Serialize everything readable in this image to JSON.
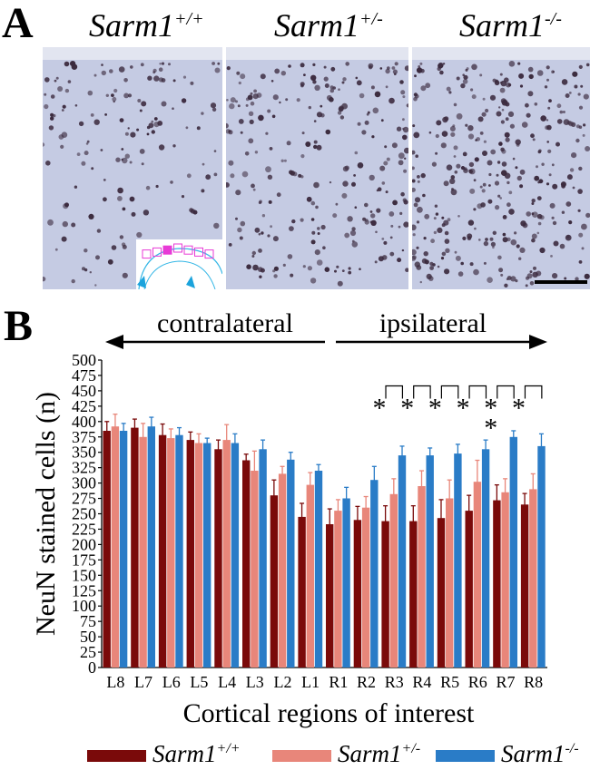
{
  "panel_a": {
    "letter": "A",
    "genotype_labels": [
      {
        "base": "Sarm1",
        "sup": "+/+"
      },
      {
        "base": "Sarm1",
        "sup": "+/-"
      },
      {
        "base": "Sarm1",
        "sup": "-/-"
      }
    ]
  },
  "panel_b": {
    "letter": "B"
  },
  "colors": {
    "wt": "#7a0a0a",
    "het": "#e8867a",
    "ko": "#2a7cc7",
    "tissue": "#c5cbe3",
    "cells": "#3b2a3e"
  },
  "chart_data": {
    "type": "bar",
    "categories": [
      "L8",
      "L7",
      "L6",
      "L5",
      "L4",
      "L3",
      "L2",
      "L1",
      "R1",
      "R2",
      "R3",
      "R4",
      "R5",
      "R6",
      "R7",
      "R8"
    ],
    "series": [
      {
        "name": "Sarm1+/+",
        "values": [
          385,
          390,
          378,
          370,
          355,
          337,
          280,
          245,
          233,
          240,
          238,
          238,
          243,
          255,
          272,
          265
        ],
        "errors": [
          15,
          14,
          18,
          13,
          15,
          10,
          25,
          22,
          25,
          22,
          25,
          25,
          30,
          25,
          25,
          18
        ]
      },
      {
        "name": "Sarm1+/-",
        "values": [
          392,
          375,
          373,
          365,
          370,
          320,
          315,
          297,
          255,
          260,
          282,
          295,
          275,
          302,
          285,
          290
        ],
        "errors": [
          20,
          22,
          15,
          15,
          25,
          32,
          12,
          20,
          18,
          18,
          25,
          25,
          30,
          35,
          22,
          25
        ]
      },
      {
        "name": "Sarm1-/-",
        "values": [
          385,
          392,
          378,
          365,
          365,
          355,
          338,
          320,
          275,
          305,
          345,
          345,
          348,
          355,
          375,
          360
        ],
        "errors": [
          12,
          15,
          12,
          8,
          15,
          15,
          12,
          10,
          18,
          22,
          15,
          12,
          15,
          15,
          10,
          20
        ]
      }
    ],
    "ylim": [
      0,
      500
    ],
    "yticks": [
      0,
      25,
      50,
      75,
      100,
      125,
      150,
      175,
      200,
      225,
      250,
      275,
      300,
      325,
      350,
      375,
      400,
      425,
      450,
      475,
      500
    ],
    "ylabel": "NeuN stained cells (n)",
    "xlabel": "Cortical regions of interest",
    "direction_labels": {
      "left": "contralateral",
      "right": "ipsilateral"
    },
    "significance": [
      {
        "category": "R3",
        "marks": "*"
      },
      {
        "category": "R4",
        "marks": "*"
      },
      {
        "category": "R5",
        "marks": "*"
      },
      {
        "category": "R6",
        "marks": "*"
      },
      {
        "category": "R7",
        "marks": "**"
      },
      {
        "category": "R8",
        "marks": "*"
      }
    ],
    "legend": {
      "placement": "bottom",
      "entries": [
        {
          "base": "Sarm1",
          "sup": "+/+"
        },
        {
          "base": "Sarm1",
          "sup": "+/-"
        },
        {
          "base": "Sarm1",
          "sup": "-/-"
        }
      ]
    },
    "grid": false
  }
}
